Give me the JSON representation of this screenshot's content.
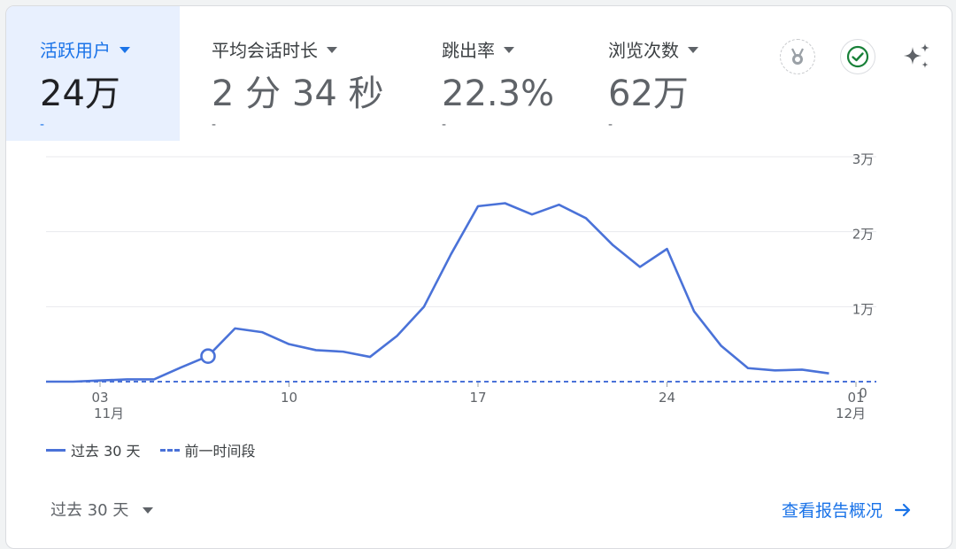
{
  "metrics": [
    {
      "label": "活跃用户",
      "value": "24万",
      "delta": "-",
      "active": true
    },
    {
      "label": "平均会话时长",
      "value": "2 分 34 秒",
      "delta": "-",
      "active": false
    },
    {
      "label": "跳出率",
      "value": "22.3%",
      "delta": "-",
      "active": false
    },
    {
      "label": "浏览次数",
      "value": "62万",
      "delta": "-",
      "active": false
    }
  ],
  "toolbar_icons": [
    "medal-icon",
    "check-circle-icon",
    "sparkle-icon"
  ],
  "legend": {
    "current": "过去 30 天",
    "previous": "前一时间段"
  },
  "footer": {
    "date_range": "过去 30 天",
    "report_link": "查看报告概况"
  },
  "colors": {
    "accent": "#1a73e8",
    "line": "#4a72d8",
    "active_bg": "#e8f0fe"
  },
  "chart_data": {
    "type": "line",
    "series": [
      {
        "name": "过去 30 天",
        "values": [
          0,
          0,
          150,
          300,
          300,
          1900,
          3400,
          7100,
          6600,
          5000,
          4200,
          4000,
          3300,
          6100,
          10000,
          17000,
          23400,
          23800,
          22300,
          23600,
          21800,
          18200,
          15300,
          17700,
          9400,
          4800,
          1800,
          1500,
          1600,
          1100
        ]
      },
      {
        "name": "前一时间段",
        "values": [
          0,
          0,
          0,
          0,
          0,
          0,
          0,
          0,
          0,
          0,
          0,
          0,
          0,
          0,
          0,
          0,
          0,
          0,
          0,
          0,
          0,
          0,
          0,
          0,
          0,
          0,
          0,
          0,
          0,
          0
        ]
      }
    ],
    "x_dates": [
      "11-01",
      "11-02",
      "11-03",
      "11-04",
      "11-05",
      "11-06",
      "11-07",
      "11-08",
      "11-09",
      "11-10",
      "11-11",
      "11-12",
      "11-13",
      "11-14",
      "11-15",
      "11-16",
      "11-17",
      "11-18",
      "11-19",
      "11-20",
      "11-21",
      "11-22",
      "11-23",
      "11-24",
      "11-25",
      "11-26",
      "11-27",
      "11-28",
      "11-29",
      "11-30"
    ],
    "x_ticks": [
      {
        "date": "11-03",
        "label": "03",
        "sub": "11月"
      },
      {
        "date": "11-10",
        "label": "10",
        "sub": ""
      },
      {
        "date": "11-17",
        "label": "17",
        "sub": ""
      },
      {
        "date": "11-24",
        "label": "24",
        "sub": ""
      },
      {
        "date": "12-01",
        "label": "01",
        "sub": "12月"
      }
    ],
    "y_ticks": [
      {
        "value": 0,
        "label": "0"
      },
      {
        "value": 10000,
        "label": "1万"
      },
      {
        "value": 20000,
        "label": "2万"
      },
      {
        "value": 30000,
        "label": "3万"
      }
    ],
    "ylim": [
      0,
      30000
    ],
    "highlighted_point": "11-07",
    "grid": true
  }
}
